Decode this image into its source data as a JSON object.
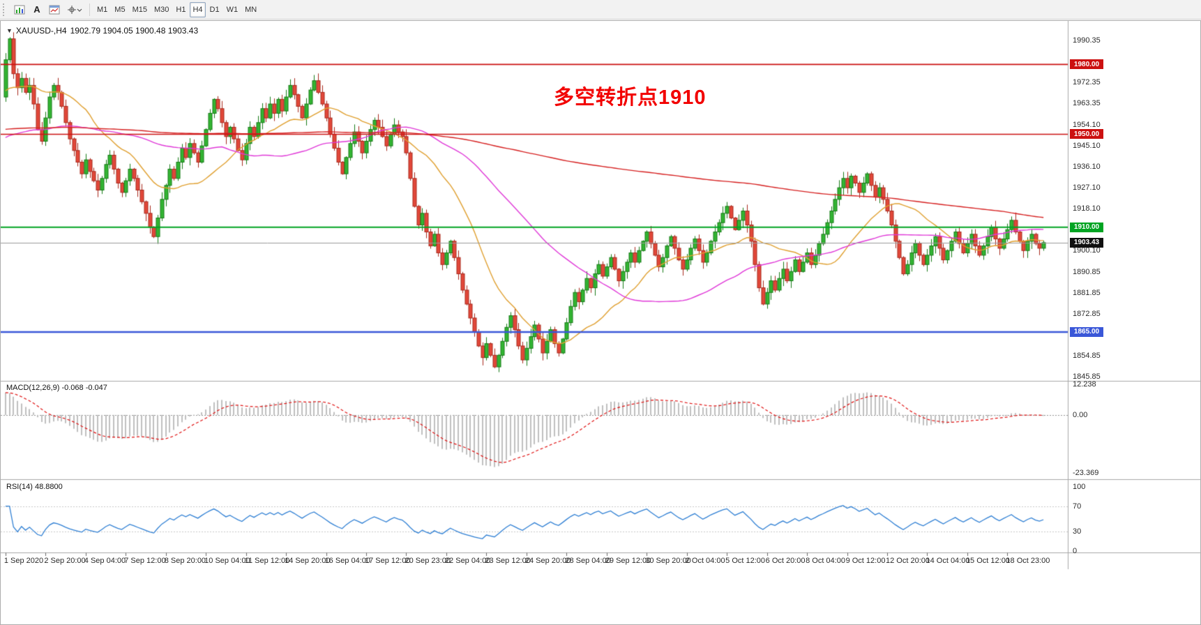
{
  "toolbar": {
    "text_tool_label": "A",
    "icons": [
      "bar-chart-icon",
      "text-tool-icon",
      "chart-window-icon",
      "crosshair-icon",
      "chevron-down-icon"
    ],
    "timeframes": {
      "items": [
        "M1",
        "M5",
        "M15",
        "M30",
        "H1",
        "H4",
        "D1",
        "W1",
        "MN"
      ],
      "active": "H4"
    }
  },
  "chart_data": {
    "type": "candlestick",
    "symbol": "XAUUSD-",
    "timeframe": "H4",
    "title_symbol": "XAUUSD-,H4",
    "title_ohlc": "1902.79 1904.05 1900.48 1903.43",
    "ohlc_current": {
      "open": 1902.79,
      "high": 1904.05,
      "low": 1900.48,
      "close": 1903.43
    },
    "annotation": {
      "text": "多空转折点1910",
      "color": "#f20000"
    },
    "first_open": 1966,
    "candles_per_time_label": 10,
    "closes": [
      1982,
      1991,
      1976,
      1970,
      1974,
      1968,
      1971,
      1963,
      1952,
      1947,
      1957,
      1966,
      1971,
      1968,
      1962,
      1955,
      1948,
      1943,
      1938,
      1933,
      1939,
      1934,
      1930,
      1926,
      1931,
      1937,
      1941,
      1935,
      1929,
      1925,
      1930,
      1935,
      1931,
      1926,
      1921,
      1916,
      1910,
      1906,
      1914,
      1922,
      1928,
      1935,
      1931,
      1938,
      1944,
      1940,
      1946,
      1942,
      1938,
      1945,
      1952,
      1959,
      1965,
      1961,
      1955,
      1949,
      1953,
      1948,
      1943,
      1939,
      1946,
      1953,
      1949,
      1955,
      1961,
      1957,
      1963,
      1959,
      1965,
      1960,
      1966,
      1971,
      1967,
      1962,
      1957,
      1963,
      1969,
      1973,
      1968,
      1963,
      1957,
      1950,
      1944,
      1938,
      1933,
      1940,
      1946,
      1951,
      1947,
      1942,
      1947,
      1952,
      1956,
      1953,
      1949,
      1945,
      1950,
      1954,
      1951,
      1949,
      1942,
      1931,
      1919,
      1911,
      1916,
      1908,
      1902,
      1907,
      1899,
      1894,
      1899,
      1904,
      1897,
      1890,
      1883,
      1877,
      1871,
      1865,
      1859,
      1854,
      1860,
      1855,
      1850,
      1855,
      1861,
      1867,
      1872,
      1866,
      1859,
      1853,
      1858,
      1863,
      1868,
      1862,
      1856,
      1861,
      1866,
      1860,
      1856,
      1862,
      1869,
      1876,
      1882,
      1878,
      1883,
      1888,
      1884,
      1890,
      1894,
      1889,
      1893,
      1897,
      1892,
      1887,
      1891,
      1895,
      1899,
      1895,
      1900,
      1904,
      1908,
      1903,
      1898,
      1893,
      1897,
      1902,
      1906,
      1901,
      1896,
      1892,
      1896,
      1901,
      1905,
      1900,
      1895,
      1899,
      1904,
      1908,
      1912,
      1916,
      1919,
      1914,
      1909,
      1913,
      1917,
      1911,
      1904,
      1894,
      1884,
      1877,
      1882,
      1887,
      1883,
      1888,
      1892,
      1887,
      1891,
      1896,
      1891,
      1895,
      1899,
      1894,
      1898,
      1903,
      1907,
      1912,
      1917,
      1922,
      1927,
      1931,
      1927,
      1932,
      1929,
      1925,
      1929,
      1933,
      1928,
      1923,
      1927,
      1922,
      1917,
      1911,
      1904,
      1897,
      1890,
      1894,
      1899,
      1903,
      1898,
      1894,
      1898,
      1902,
      1906,
      1901,
      1896,
      1900,
      1904,
      1908,
      1903,
      1899,
      1903,
      1907,
      1902,
      1898,
      1902,
      1906,
      1910,
      1905,
      1901,
      1905,
      1909,
      1913,
      1908,
      1904,
      1900,
      1904,
      1907,
      1903,
      1901,
      1903.43
    ],
    "time_labels": [
      "1 Sep 2020",
      "2 Sep 20:00",
      "4 Sep 04:00",
      "7 Sep 12:00",
      "8 Sep 20:00",
      "10 Sep 04:00",
      "11 Sep 12:00",
      "14 Sep 20:00",
      "16 Sep 04:00",
      "17 Sep 12:00",
      "20 Sep 23:00",
      "22 Sep 04:00",
      "23 Sep 12:00",
      "24 Sep 20:00",
      "28 Sep 04:00",
      "29 Sep 12:00",
      "30 Sep 20:00",
      "2 Oct 04:00",
      "5 Oct 12:00",
      "6 Oct 20:00",
      "8 Oct 04:00",
      "9 Oct 12:00",
      "12 Oct 20:00",
      "14 Oct 04:00",
      "15 Oct 12:00",
      "18 Oct 23:00"
    ],
    "price_axis": {
      "min": 1844.0,
      "max": 1997.5,
      "ticks": [
        {
          "v": 1990.35,
          "label": "1990.35"
        },
        {
          "v": 1972.35,
          "label": "1972.35"
        },
        {
          "v": 1963.35,
          "label": "1963.35"
        },
        {
          "v": 1954.1,
          "label": "1954.10"
        },
        {
          "v": 1945.1,
          "label": "1945.10"
        },
        {
          "v": 1936.1,
          "label": "1936.10"
        },
        {
          "v": 1927.1,
          "label": "1927.10"
        },
        {
          "v": 1918.1,
          "label": "1918.10"
        },
        {
          "v": 1900.1,
          "label": "1900.10"
        },
        {
          "v": 1890.85,
          "label": "1890.85"
        },
        {
          "v": 1881.85,
          "label": "1881.85"
        },
        {
          "v": 1872.85,
          "label": "1872.85"
        },
        {
          "v": 1854.85,
          "label": "1854.85"
        },
        {
          "v": 1845.85,
          "label": "1845.85"
        }
      ]
    },
    "levels": [
      {
        "value": 1980.0,
        "label": "1980.00",
        "color": "#cc1111",
        "line_width": 1.6
      },
      {
        "value": 1950.0,
        "label": "1950.00",
        "color": "#cc1111",
        "line_width": 1.6
      },
      {
        "value": 1910.0,
        "label": "1910.00",
        "color": "#00a422",
        "line_width": 2
      },
      {
        "value": 1865.0,
        "label": "1865.00",
        "color": "#3a57d8",
        "line_width": 2.4
      }
    ],
    "current_price": {
      "value": 1903.43,
      "label": "1903.43",
      "chip_color": "#101010",
      "line_color": "#9a9a9a"
    },
    "moving_averages": [
      {
        "period": 21,
        "color": "#e0a030",
        "pad": 1968
      },
      {
        "period": 55,
        "color": "#e038d8",
        "pad": 1948
      },
      {
        "period": 250,
        "color": "#d62020",
        "pad": 1952
      }
    ],
    "candle_colors": {
      "bull_fill": "#33b533",
      "bull_stroke": "#157a15",
      "bear_fill": "#e2483a",
      "bear_stroke": "#a8281c"
    },
    "indicators": {
      "macd": {
        "label": "MACD(12,26,9) -0.068 -0.047",
        "fast": 12,
        "slow": 26,
        "signal": 9,
        "value_main": -0.068,
        "value_signal": -0.047,
        "axis": {
          "top": {
            "v": 12.238,
            "label": "12.238"
          },
          "zero": {
            "v": 0,
            "label": "0.00"
          },
          "bottom": {
            "v": -23.369,
            "label": "-23.369"
          }
        },
        "histogram_color": "#bfbfbf",
        "signal_color": "#e01010"
      },
      "rsi": {
        "label": "RSI(14) 48.8800",
        "period": 14,
        "value": 48.88,
        "color": "#2e7fd4",
        "levels": [
          70,
          30
        ],
        "axis_labels": [
          {
            "v": 100,
            "label": "100"
          },
          {
            "v": 70,
            "label": "70"
          },
          {
            "v": 30,
            "label": "30"
          },
          {
            "v": 0,
            "label": "0"
          }
        ]
      }
    }
  }
}
